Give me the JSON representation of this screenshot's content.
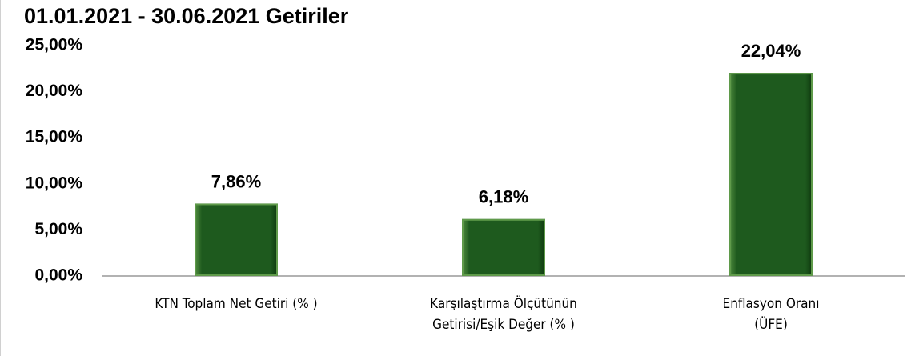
{
  "chart_data": {
    "type": "bar",
    "title": "01.01.2021 - 30.06.2021 Getiriler",
    "categories": [
      [
        "KTN Toplam  Net Getiri (% )"
      ],
      [
        "Karşılaştırma Ölçütünün",
        "Getirisi/Eşik Değer (% )"
      ],
      [
        "Enflasyon Oranı",
        "(ÜFE)"
      ]
    ],
    "values": [
      7.86,
      6.18,
      22.04
    ],
    "value_labels": [
      "7,86%",
      "6,18%",
      "22,04%"
    ],
    "color": "#1e5a1e",
    "ylim": [
      0,
      25
    ],
    "yticks": [
      {
        "value": 0,
        "label": "0,00%"
      },
      {
        "value": 5,
        "label": "5,00%"
      },
      {
        "value": 10,
        "label": "10,00%"
      },
      {
        "value": 15,
        "label": "15,00%"
      },
      {
        "value": 20,
        "label": "20,00%"
      },
      {
        "value": 25,
        "label": "25,00%"
      }
    ],
    "grid": false
  }
}
